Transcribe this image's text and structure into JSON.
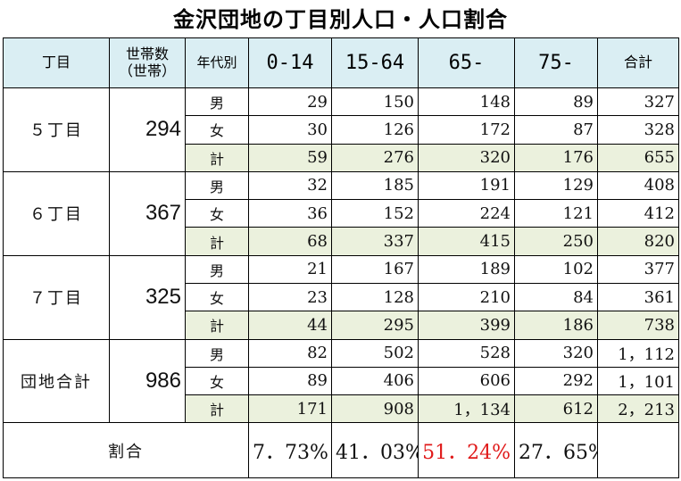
{
  "title": "金沢団地の丁目別人口・人口割合",
  "header": {
    "district": "丁目",
    "households_line1": "世帯数",
    "households_line2": "（世帯）",
    "age_group": "年代別",
    "col_0_14": "0-14",
    "col_15_64": "15-64",
    "col_65": "65-",
    "col_75": "75-",
    "col_total": "合計"
  },
  "sex_labels": {
    "male": "男",
    "female": "女",
    "subtotal": "計"
  },
  "blocks": [
    {
      "name": "５丁目",
      "households": "294",
      "male": [
        "29",
        "150",
        "148",
        "89",
        "327"
      ],
      "female": [
        "30",
        "126",
        "172",
        "87",
        "328"
      ],
      "total": [
        "59",
        "276",
        "320",
        "176",
        "655"
      ]
    },
    {
      "name": "６丁目",
      "households": "367",
      "male": [
        "32",
        "185",
        "191",
        "129",
        "408"
      ],
      "female": [
        "36",
        "152",
        "224",
        "121",
        "412"
      ],
      "total": [
        "68",
        "337",
        "415",
        "250",
        "820"
      ]
    },
    {
      "name": "７丁目",
      "households": "325",
      "male": [
        "21",
        "167",
        "189",
        "102",
        "377"
      ],
      "female": [
        "23",
        "128",
        "210",
        "84",
        "361"
      ],
      "total": [
        "44",
        "295",
        "399",
        "186",
        "738"
      ]
    },
    {
      "name": "団地合計",
      "households": "986",
      "male": [
        "82",
        "502",
        "528",
        "320",
        "1，112"
      ],
      "female": [
        "89",
        "406",
        "606",
        "292",
        "1，101"
      ],
      "total": [
        "171",
        "908",
        "1，134",
        "612",
        "2，213"
      ]
    }
  ],
  "ratio": {
    "label": "割合",
    "values": [
      "7．73%",
      "41．03%",
      "51．24%",
      "27．65%"
    ]
  },
  "colors": {
    "header_bg": "#daeef3",
    "subtotal_bg": "#ebf1dd",
    "highlight": "#e01a1a"
  }
}
